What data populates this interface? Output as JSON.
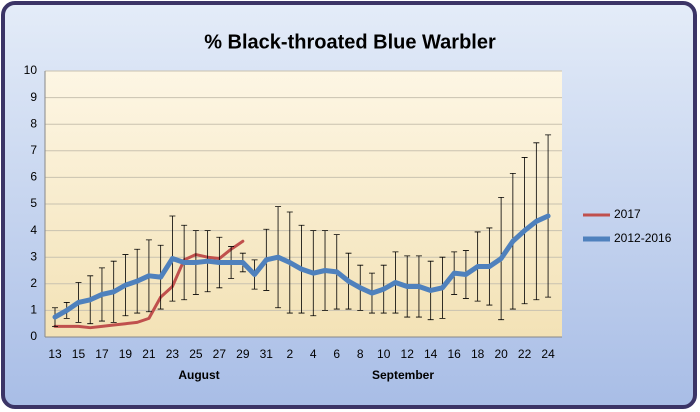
{
  "chart_data": {
    "type": "line",
    "title": "% Black-throated Blue Warbler",
    "categories": [
      "13",
      null,
      "15",
      null,
      "17",
      null,
      "19",
      null,
      "21",
      null,
      "23",
      null,
      "25",
      null,
      "27",
      null,
      "29",
      null,
      "31",
      null,
      "2",
      null,
      "4",
      null,
      "6",
      null,
      "8",
      null,
      "10",
      null,
      "12",
      null,
      "14",
      null,
      "16",
      null,
      "18",
      null,
      "20",
      null,
      "22",
      null,
      "24"
    ],
    "annotations": [
      "August",
      "September"
    ],
    "series": [
      {
        "name": "2017",
        "color": "#c0504d",
        "values": [
          0.4,
          0.4,
          0.4,
          0.35,
          0.4,
          0.45,
          0.5,
          0.55,
          0.7,
          1.5,
          1.9,
          2.9,
          3.1,
          3.0,
          2.95,
          3.3,
          3.6,
          null,
          null,
          null,
          null,
          null,
          null,
          null,
          null,
          null,
          null,
          null,
          null,
          null,
          null,
          null,
          null,
          null,
          null,
          null,
          null,
          null,
          null,
          null,
          null,
          null,
          null
        ]
      },
      {
        "name": "2012-2016",
        "color": "#4f81bd",
        "values": [
          0.75,
          1.0,
          1.3,
          1.4,
          1.6,
          1.7,
          1.95,
          2.1,
          2.3,
          2.25,
          2.95,
          2.8,
          2.8,
          2.85,
          2.8,
          2.8,
          2.8,
          2.35,
          2.9,
          3.0,
          2.8,
          2.55,
          2.4,
          2.5,
          2.45,
          2.1,
          1.85,
          1.65,
          1.8,
          2.05,
          1.9,
          1.9,
          1.75,
          1.85,
          2.4,
          2.35,
          2.65,
          2.65,
          2.95,
          3.6,
          4.0,
          4.35,
          4.55
        ],
        "errors": [
          0.35,
          0.3,
          0.75,
          0.9,
          1.0,
          1.15,
          1.15,
          1.2,
          1.35,
          1.2,
          1.6,
          1.4,
          1.2,
          1.15,
          0.95,
          0.6,
          0.35,
          0.55,
          1.15,
          1.9,
          1.9,
          1.65,
          1.6,
          1.5,
          1.4,
          1.05,
          0.85,
          0.75,
          0.9,
          1.15,
          1.15,
          1.15,
          1.1,
          1.15,
          0.8,
          0.9,
          1.3,
          1.45,
          2.3,
          2.55,
          2.75,
          2.95,
          3.05
        ]
      }
    ],
    "ylim": [
      0,
      10
    ],
    "yticks": [
      0,
      1,
      2,
      3,
      4,
      5,
      6,
      7,
      8,
      9,
      10
    ],
    "grid": true,
    "legend": "right"
  }
}
